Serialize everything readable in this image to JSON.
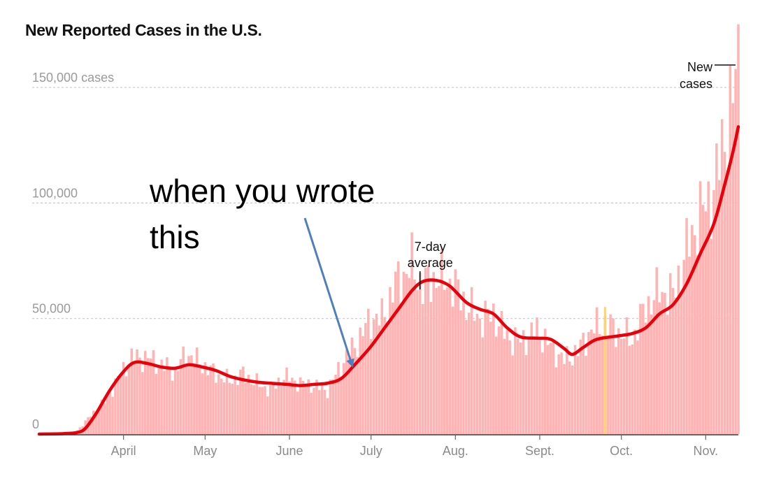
{
  "title": "New Reported Cases in the U.S.",
  "chart_data": {
    "type": "bar",
    "title": "New Reported Cases in the U.S.",
    "xlabel": "",
    "ylabel": "",
    "ylim": [
      0,
      160000
    ],
    "grid": true,
    "y_ticks": [
      {
        "value": 0,
        "label": "0"
      },
      {
        "value": 50000,
        "label": "50,000"
      },
      {
        "value": 100000,
        "label": "100,000"
      },
      {
        "value": 150000,
        "label": "150,000 cases"
      }
    ],
    "x_ticks": [
      {
        "date": "2020-04-01",
        "label": "April"
      },
      {
        "date": "2020-05-01",
        "label": "May"
      },
      {
        "date": "2020-06-01",
        "label": "June"
      },
      {
        "date": "2020-07-01",
        "label": "July"
      },
      {
        "date": "2020-08-01",
        "label": "Aug."
      },
      {
        "date": "2020-09-01",
        "label": "Sept."
      },
      {
        "date": "2020-10-01",
        "label": "Oct."
      },
      {
        "date": "2020-11-01",
        "label": "Nov."
      }
    ],
    "x_range": [
      "2020-03-01",
      "2020-11-13"
    ],
    "bar_color": "#ffb3b3",
    "highlight_bar": {
      "date": "2020-09-25",
      "value": 55000,
      "color": "#ffd27a"
    },
    "line_color": "#e8000b",
    "series": [
      {
        "kind": "daily",
        "points": [
          [
            "2020-03-15",
            1500
          ],
          [
            "2020-03-20",
            8000
          ],
          [
            "2020-03-25",
            14000
          ],
          [
            "2020-03-31",
            26000
          ],
          [
            "2020-04-04",
            33000
          ],
          [
            "2020-04-10",
            33000
          ],
          [
            "2020-04-15",
            30000
          ],
          [
            "2020-04-20",
            27000
          ],
          [
            "2020-04-24",
            35000
          ],
          [
            "2020-04-30",
            30000
          ],
          [
            "2020-05-05",
            26000
          ],
          [
            "2020-05-10",
            23000
          ],
          [
            "2020-05-15",
            26000
          ],
          [
            "2020-05-20",
            22000
          ],
          [
            "2020-05-25",
            19000
          ],
          [
            "2020-05-30",
            25000
          ],
          [
            "2020-06-05",
            22000
          ],
          [
            "2020-06-10",
            21000
          ],
          [
            "2020-06-15",
            19000
          ],
          [
            "2020-06-20",
            30000
          ],
          [
            "2020-06-26",
            40000
          ],
          [
            "2020-07-01",
            50000
          ],
          [
            "2020-07-05",
            50000
          ],
          [
            "2020-07-10",
            65000
          ],
          [
            "2020-07-16",
            73000
          ],
          [
            "2020-07-20",
            64000
          ],
          [
            "2020-07-25",
            68000
          ],
          [
            "2020-07-31",
            65000
          ],
          [
            "2020-08-05",
            56000
          ],
          [
            "2020-08-10",
            50000
          ],
          [
            "2020-08-15",
            52000
          ],
          [
            "2020-08-20",
            42000
          ],
          [
            "2020-08-25",
            40000
          ],
          [
            "2020-08-31",
            45000
          ],
          [
            "2020-09-05",
            38000
          ],
          [
            "2020-09-10",
            32000
          ],
          [
            "2020-09-15",
            36000
          ],
          [
            "2020-09-20",
            45000
          ],
          [
            "2020-09-25",
            48000
          ],
          [
            "2020-09-30",
            44000
          ],
          [
            "2020-10-05",
            41000
          ],
          [
            "2020-10-10",
            55000
          ],
          [
            "2020-10-15",
            62000
          ],
          [
            "2020-10-20",
            60000
          ],
          [
            "2020-10-25",
            80000
          ],
          [
            "2020-10-30",
            95000
          ],
          [
            "2020-11-04",
            105000
          ],
          [
            "2020-11-08",
            130000
          ],
          [
            "2020-11-11",
            145000
          ],
          [
            "2020-11-13",
            163000
          ]
        ]
      },
      {
        "kind": "7-day average",
        "points": [
          [
            "2020-03-01",
            0
          ],
          [
            "2020-03-10",
            200
          ],
          [
            "2020-03-15",
            700
          ],
          [
            "2020-03-18",
            2500
          ],
          [
            "2020-03-22",
            9000
          ],
          [
            "2020-03-27",
            19000
          ],
          [
            "2020-04-01",
            27000
          ],
          [
            "2020-04-05",
            31000
          ],
          [
            "2020-04-10",
            30500
          ],
          [
            "2020-04-15",
            29000
          ],
          [
            "2020-04-20",
            28500
          ],
          [
            "2020-04-25",
            30000
          ],
          [
            "2020-04-30",
            29000
          ],
          [
            "2020-05-05",
            27500
          ],
          [
            "2020-05-10",
            25000
          ],
          [
            "2020-05-15",
            23500
          ],
          [
            "2020-05-20",
            22500
          ],
          [
            "2020-05-25",
            22000
          ],
          [
            "2020-05-31",
            21500
          ],
          [
            "2020-06-05",
            21000
          ],
          [
            "2020-06-10",
            21500
          ],
          [
            "2020-06-15",
            22000
          ],
          [
            "2020-06-20",
            24000
          ],
          [
            "2020-06-25",
            30000
          ],
          [
            "2020-07-01",
            38000
          ],
          [
            "2020-07-06",
            46000
          ],
          [
            "2020-07-11",
            54000
          ],
          [
            "2020-07-16",
            62000
          ],
          [
            "2020-07-20",
            66000
          ],
          [
            "2020-07-25",
            66500
          ],
          [
            "2020-07-30",
            64000
          ],
          [
            "2020-08-05",
            57000
          ],
          [
            "2020-08-10",
            54000
          ],
          [
            "2020-08-15",
            52000
          ],
          [
            "2020-08-20",
            46000
          ],
          [
            "2020-08-25",
            42000
          ],
          [
            "2020-08-31",
            41500
          ],
          [
            "2020-09-05",
            41000
          ],
          [
            "2020-09-10",
            37000
          ],
          [
            "2020-09-13",
            34500
          ],
          [
            "2020-09-17",
            37500
          ],
          [
            "2020-09-22",
            41000
          ],
          [
            "2020-09-30",
            42500
          ],
          [
            "2020-10-05",
            43500
          ],
          [
            "2020-10-10",
            46000
          ],
          [
            "2020-10-15",
            52000
          ],
          [
            "2020-10-20",
            56000
          ],
          [
            "2020-10-25",
            65000
          ],
          [
            "2020-10-30",
            78000
          ],
          [
            "2020-11-04",
            91000
          ],
          [
            "2020-11-08",
            108000
          ],
          [
            "2020-11-11",
            122000
          ],
          [
            "2020-11-13",
            133000
          ]
        ]
      }
    ],
    "annotations": {
      "average_label": [
        "7-day",
        "average"
      ],
      "new_cases_label": [
        "New",
        "cases"
      ],
      "overlay_text": [
        "when you wrote",
        "this"
      ],
      "overlay_arrow_target_date": "2020-06-24"
    }
  }
}
